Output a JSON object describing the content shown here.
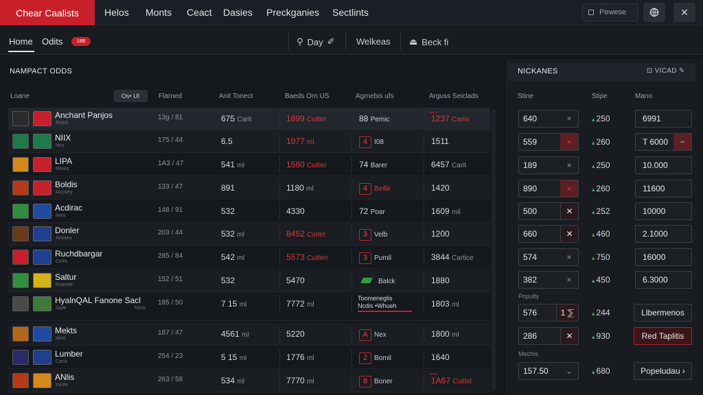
{
  "app": {
    "brand": "Chear Caalists",
    "nav": [
      "Helos",
      "Monts",
      "Ceact",
      "Dasies",
      "Preckganies",
      "Sectlints"
    ],
    "search_label": "Pewese"
  },
  "subnav": {
    "tabs": [
      "Home",
      "Odits"
    ],
    "badge": "18B",
    "filters": [
      "Day",
      "Welkeas",
      "Beck fi"
    ]
  },
  "table": {
    "title": "NAMPACT ODDS",
    "chip": "Os• UI",
    "columns": [
      "Loane",
      "Flarned",
      "Anit Tonect",
      "Baeds Orn US",
      "Agrnebis ufs",
      "Arguss Seiclads"
    ],
    "rows": [
      {
        "name": "Anchant Panjos",
        "sub": "Rickis",
        "c1": "13g / 81",
        "c2": "675",
        "c2u": "Carit",
        "c3": "1899",
        "c3u": "Cuitlet",
        "c3red": true,
        "c4": "88",
        "c4u": "Pemic",
        "c4style": "plain",
        "c5": "1237",
        "c5u": "Cariis",
        "c5red": true
      },
      {
        "name": "NIIX",
        "sub": "Ncs",
        "c1": "175 / 44",
        "c2": "6.5",
        "c2u": "",
        "c3": "1077",
        "c3u": "ml.",
        "c3red": true,
        "c4": "4",
        "c4u": "I08",
        "c4style": "box",
        "c5": "1511",
        "c5u": "",
        "c5red": false
      },
      {
        "name": "LIPA",
        "sub": "Mreez",
        "c1": "1A3 / 47",
        "c2": "541",
        "c2u": "ml",
        "c3": "1580",
        "c3u": "Cuitler",
        "c3red": true,
        "c4": "74",
        "c4u": "Barer",
        "c4style": "plain",
        "c5": "6457",
        "c5u": "Carit",
        "c5red": false
      },
      {
        "name": "Boldis",
        "sub": "Aucsiey",
        "c1": "133 / 47",
        "c2": "891",
        "c2u": "",
        "c3": "1180",
        "c3u": "ml",
        "c3red": false,
        "c4": "4",
        "c4u": "Beilik",
        "c4style": "boxred",
        "c5": "1420",
        "c5u": "",
        "c5red": false
      },
      {
        "name": "Acdirac",
        "sub": "Iiyes",
        "c1": "148 / 91",
        "c2": "532",
        "c2u": "",
        "c3": "4330",
        "c3u": "",
        "c3red": false,
        "c4": "72",
        "c4u": "Poar",
        "c4style": "plain",
        "c5": "1609",
        "c5u": "mil",
        "c5red": false
      },
      {
        "name": "Donler",
        "sub": "Aoiniea",
        "c1": "203 / 44",
        "c2": "532",
        "c2u": "ml",
        "c3": "8452",
        "c3u": "Curlet",
        "c3red": true,
        "c4": "3",
        "c4u": "Velb",
        "c4style": "box",
        "c5": "1200",
        "c5u": "",
        "c5red": false
      },
      {
        "name": "Ruchdbargar",
        "sub": "Coilis",
        "c1": "285 / 84",
        "c2": "542",
        "c2u": "ml",
        "c3": "5573",
        "c3u": "Cuitlen",
        "c3red": true,
        "c4": "3",
        "c4u": "Pumil",
        "c4style": "box",
        "c5": "3844",
        "c5u": "Cartice",
        "c5red": false
      },
      {
        "name": "Saltur",
        "sub": "Kiseeite",
        "c1": "152 / 51",
        "c2": "532",
        "c2u": "",
        "c3": "5470",
        "c3u": "",
        "c3red": false,
        "c4": "",
        "c4u": "Balck",
        "c4style": "green",
        "c5": "1880",
        "c5u": "",
        "c5red": false
      },
      {
        "name": "HyalnQAL Fanone Sacl",
        "sub": "Siale",
        "sub2": "Tolxis",
        "c1": "185 / 50",
        "c2": "7 15",
        "c2u": "ml",
        "c3": "7772",
        "c3u": "ml",
        "c3red": false,
        "c4": "",
        "c4u": "",
        "c4style": "notes",
        "notes": "Toomeneglis\nNcdis •Whueh",
        "c5": "1803",
        "c5u": "ml",
        "c5red": false
      },
      {
        "name": "Mekts",
        "sub": "Iaice",
        "c1": "187 / 47",
        "c2": "4561",
        "c2u": "ml",
        "c3": "5220",
        "c3u": "",
        "c3red": false,
        "c4": "A",
        "c4u": "Nex",
        "c4style": "box",
        "c5": "1800",
        "c5u": "ml",
        "c5red": false
      },
      {
        "name": "Lumber",
        "sub": "Cacis",
        "c1": "254 / 23",
        "c2": "5 15",
        "c2u": "ml",
        "c3": "1776",
        "c3u": "ml",
        "c3red": false,
        "c4": "2",
        "c4u": "Bomil",
        "c4style": "box",
        "c5": "1640",
        "c5u": "",
        "c5red": false
      },
      {
        "name": "ANlis",
        "sub": "Icicite",
        "c1": "263 / 58",
        "c2": "534",
        "c2u": "ml",
        "c3": "7770",
        "c3u": "ml",
        "c3red": false,
        "c4": "8",
        "c4u": "Boner",
        "c4style": "box",
        "c5": "1A67",
        "c5u": "Cuitlst",
        "c5red": true
      }
    ]
  },
  "side": {
    "title": "NICKANES",
    "action": "VICAD",
    "columns": [
      "Stine",
      "Stipe",
      "Mano"
    ],
    "rows": [
      {
        "v": "640",
        "x": "×",
        "xstyle": "plain",
        "mid": "250",
        "out": "6991",
        "outminus": false
      },
      {
        "v": "559",
        "x": "×",
        "xstyle": "red",
        "mid": "260",
        "out": "T 6000",
        "outminus": true
      },
      {
        "v": "189",
        "x": "×",
        "xstyle": "plain",
        "mid": "250",
        "out": "10.000",
        "outminus": false
      },
      {
        "v": "890",
        "x": "×",
        "xstyle": "red",
        "mid": "260",
        "out": "11600",
        "outminus": false
      },
      {
        "v": "500",
        "x": "✕",
        "xstyle": "bordered",
        "mid": "252",
        "out": "10000",
        "outminus": false
      },
      {
        "v": "660",
        "x": "✕",
        "xstyle": "bordered",
        "mid": "460",
        "out": "2.1000",
        "outminus": false
      },
      {
        "v": "574",
        "x": "×",
        "xstyle": "plain",
        "mid": "750",
        "out": "16000",
        "outminus": false
      },
      {
        "v": "382",
        "x": "×",
        "xstyle": "plain",
        "mid": "450",
        "out": "6.3000",
        "outminus": false
      }
    ],
    "section1": "Populty",
    "row9": {
      "v": "576",
      "x": "1 ⅀",
      "mid": "244",
      "btn": "Llbermenos"
    },
    "row10": {
      "v": "286",
      "x": "✕",
      "mid": "930",
      "btn": "Red Taplitis"
    },
    "section2": "Mechis",
    "row11": {
      "v": "157.50",
      "x": "⌄",
      "mid": "680",
      "btn": "Popeludau ›"
    }
  },
  "colors": {
    "accent": "#c8202b",
    "bg": "#14171c",
    "up": "#3fae58"
  }
}
